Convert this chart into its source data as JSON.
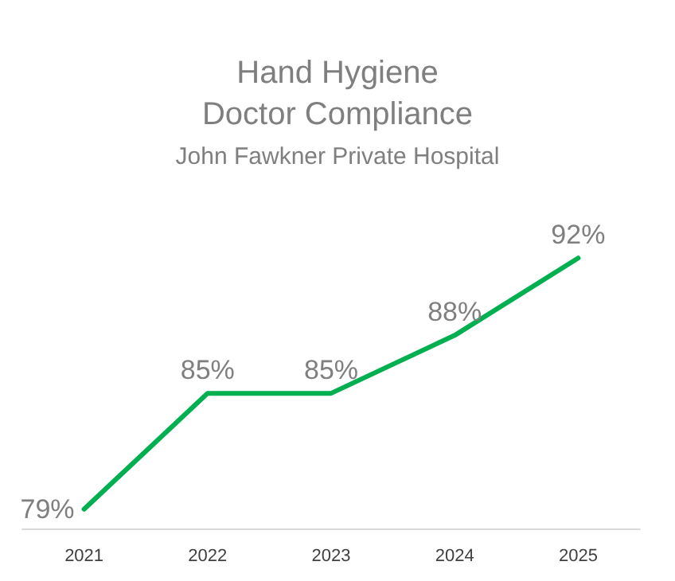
{
  "chart_data": {
    "type": "line",
    "title": "Hand Hygiene\nDoctor Compliance",
    "subtitle": "John Fawkner Private Hospital",
    "categories": [
      "2021",
      "2022",
      "2023",
      "2024",
      "2025"
    ],
    "series": [
      {
        "color": "#00b050",
        "values": [
          79,
          85,
          85,
          88,
          92
        ],
        "value_labels": [
          "79%",
          "85%",
          "85%",
          "88%",
          "92%"
        ]
      }
    ],
    "marker": "none",
    "line_style": "solid"
  }
}
